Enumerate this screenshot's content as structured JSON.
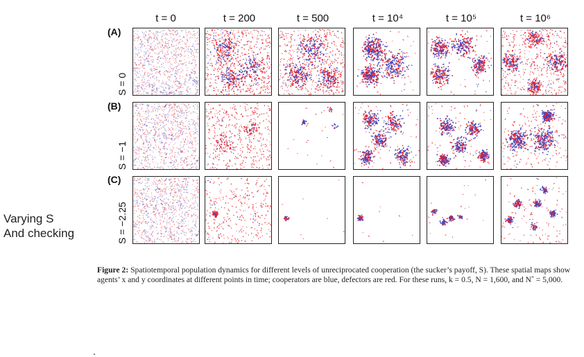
{
  "side_note": {
    "line1": "Varying S",
    "line2": "And checking"
  },
  "figure": {
    "columns": [
      "t = 0",
      "t = 200",
      "t = 500",
      "t = 10⁴",
      "t = 10⁵",
      "t = 10⁶"
    ],
    "rows": [
      {
        "tag": "(A)",
        "s_label": "S = 0"
      },
      {
        "tag": "(B)",
        "s_label": "S = −1"
      },
      {
        "tag": "(C)",
        "s_label": "S = −2.25"
      }
    ],
    "colors": {
      "cooperator": "#3a46c4",
      "defector": "#e8202a"
    }
  },
  "caption": {
    "label": "Figure 2:",
    "text": " Spatiotemporal population dynamics for different levels of unreciprocated cooperation (the sucker’s payoff, S). These spatial maps show agents’ x and y coordinates at different points in time; cooperators are blue, defectors are red. For these runs, k = 0.5, N = 1,600, and Nˆ = 5,000."
  }
}
